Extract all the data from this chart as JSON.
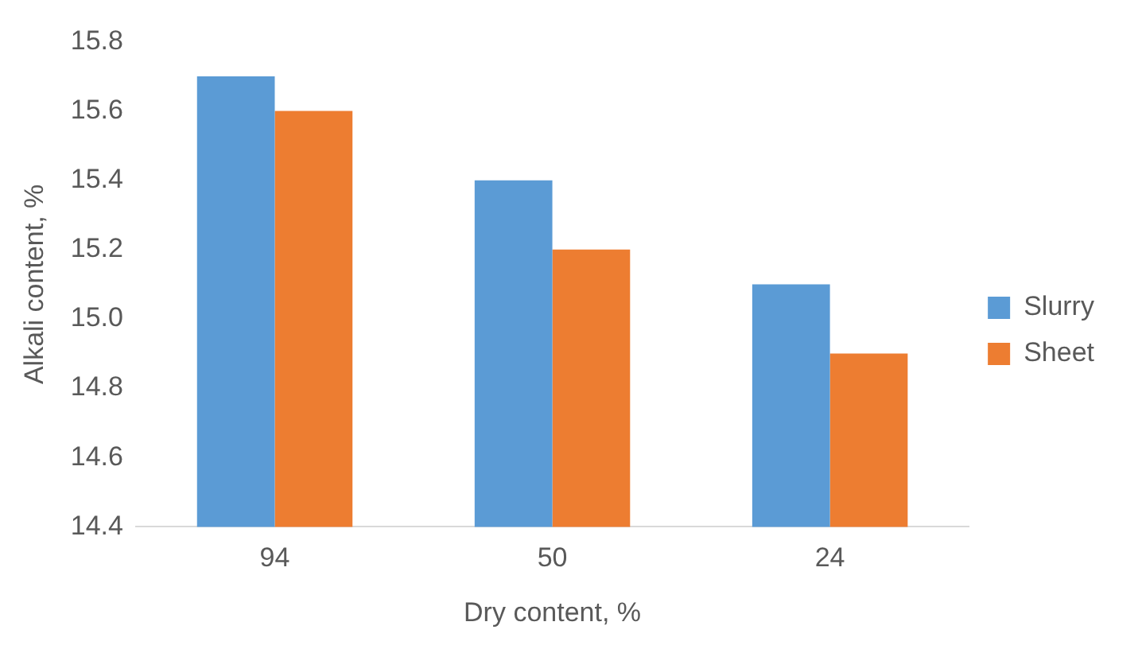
{
  "chart_data": {
    "type": "bar",
    "xlabel": "Dry content, %",
    "ylabel": "Alkali content, %",
    "categories": [
      "94",
      "50",
      "24"
    ],
    "series": [
      {
        "name": "Slurry",
        "color": "#5b9bd5",
        "values": [
          15.7,
          15.4,
          15.1
        ]
      },
      {
        "name": "Sheet",
        "color": "#ed7d31",
        "values": [
          15.6,
          15.2,
          14.9
        ]
      }
    ],
    "ylim": [
      14.4,
      15.8
    ],
    "yticks": [
      14.4,
      14.6,
      14.8,
      {
        "value": 15,
        "label": "15.0"
      },
      15.2,
      15.4,
      15.6,
      15.8
    ],
    "grid": false,
    "legend": "right"
  }
}
